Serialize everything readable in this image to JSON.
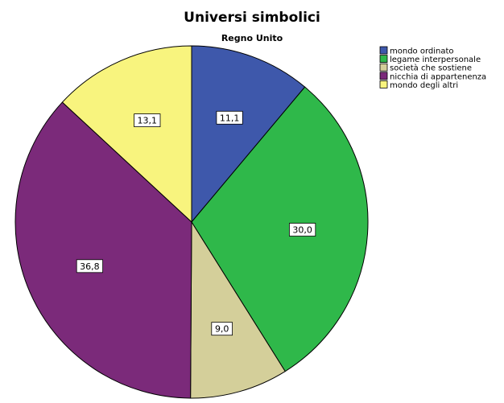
{
  "chart_data": {
    "type": "pie",
    "title": "Universi simbolici",
    "subtitle": "Regno Unito",
    "categories": [
      "mondo ordinato",
      "legame interpersonale",
      "società che sostiene",
      "nicchia di appartenenza",
      "mondo degli altri"
    ],
    "values": [
      11.1,
      30.0,
      9.0,
      36.8,
      13.1
    ],
    "value_labels": [
      "11,1",
      "30,0",
      "9,0",
      "36,8",
      "13,1"
    ],
    "colors": [
      "#3e58ab",
      "#2fb84a",
      "#d4cf9a",
      "#7b2a7a",
      "#f8f47e"
    ],
    "start": "12 o'clock",
    "direction": "clockwise",
    "legend_position": "top-right"
  }
}
